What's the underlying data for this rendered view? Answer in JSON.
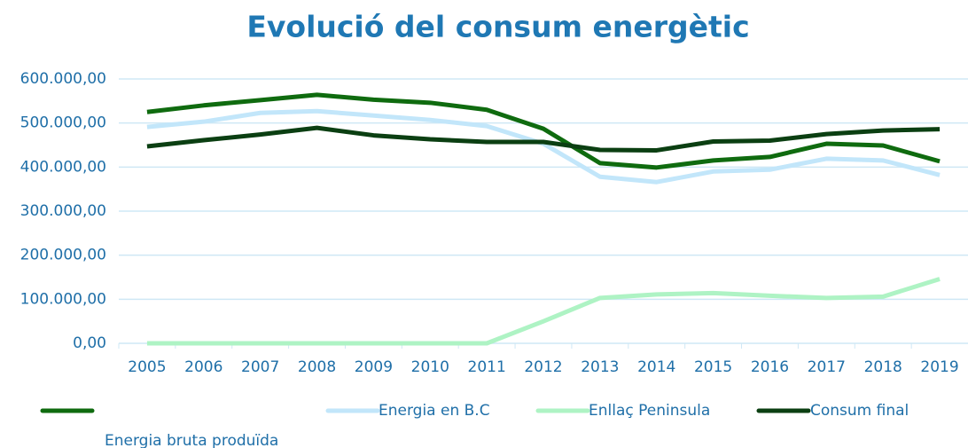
{
  "chart_data": {
    "type": "line",
    "title": "Evolució del consum energètic",
    "categories": [
      "2005",
      "2006",
      "2007",
      "2008",
      "2009",
      "2010",
      "2011",
      "2012",
      "2013",
      "2014",
      "2015",
      "2016",
      "2017",
      "2018",
      "2019"
    ],
    "series": [
      {
        "name": "Energia bruta produïda",
        "color": "#0f6b0f",
        "values": [
          525000,
          540000,
          552000,
          564000,
          553000,
          546000,
          530000,
          487000,
          409000,
          399000,
          415000,
          423000,
          453000,
          449000,
          413000
        ]
      },
      {
        "name": "Energia en B.C",
        "color": "#c2e6fa",
        "values": [
          491000,
          503000,
          523000,
          527000,
          517000,
          507000,
          493000,
          453000,
          378000,
          366000,
          390000,
          394000,
          419000,
          415000,
          382000
        ]
      },
      {
        "name": "Enllaç Peninsula",
        "color": "#aef3c4",
        "values": [
          0,
          0,
          0,
          0,
          0,
          0,
          0,
          50000,
          103000,
          111000,
          114000,
          108000,
          103000,
          106000,
          146000
        ]
      },
      {
        "name": "Consum final",
        "color": "#0b3f12",
        "values": [
          447000,
          461000,
          474000,
          489000,
          472000,
          463000,
          457000,
          457000,
          439000,
          438000,
          458000,
          460000,
          475000,
          483000,
          486000
        ]
      }
    ],
    "ylim": [
      0,
      600000
    ],
    "yticks": [
      {
        "value": 0,
        "label": "0,00"
      },
      {
        "value": 100000,
        "label": "100.000,00"
      },
      {
        "value": 200000,
        "label": "200.000,00"
      },
      {
        "value": 300000,
        "label": "300.000,00"
      },
      {
        "value": 400000,
        "label": "400.000,00"
      },
      {
        "value": 500000,
        "label": "500.000,00"
      },
      {
        "value": 600000,
        "label": "600.000,00"
      }
    ],
    "grid": true
  }
}
